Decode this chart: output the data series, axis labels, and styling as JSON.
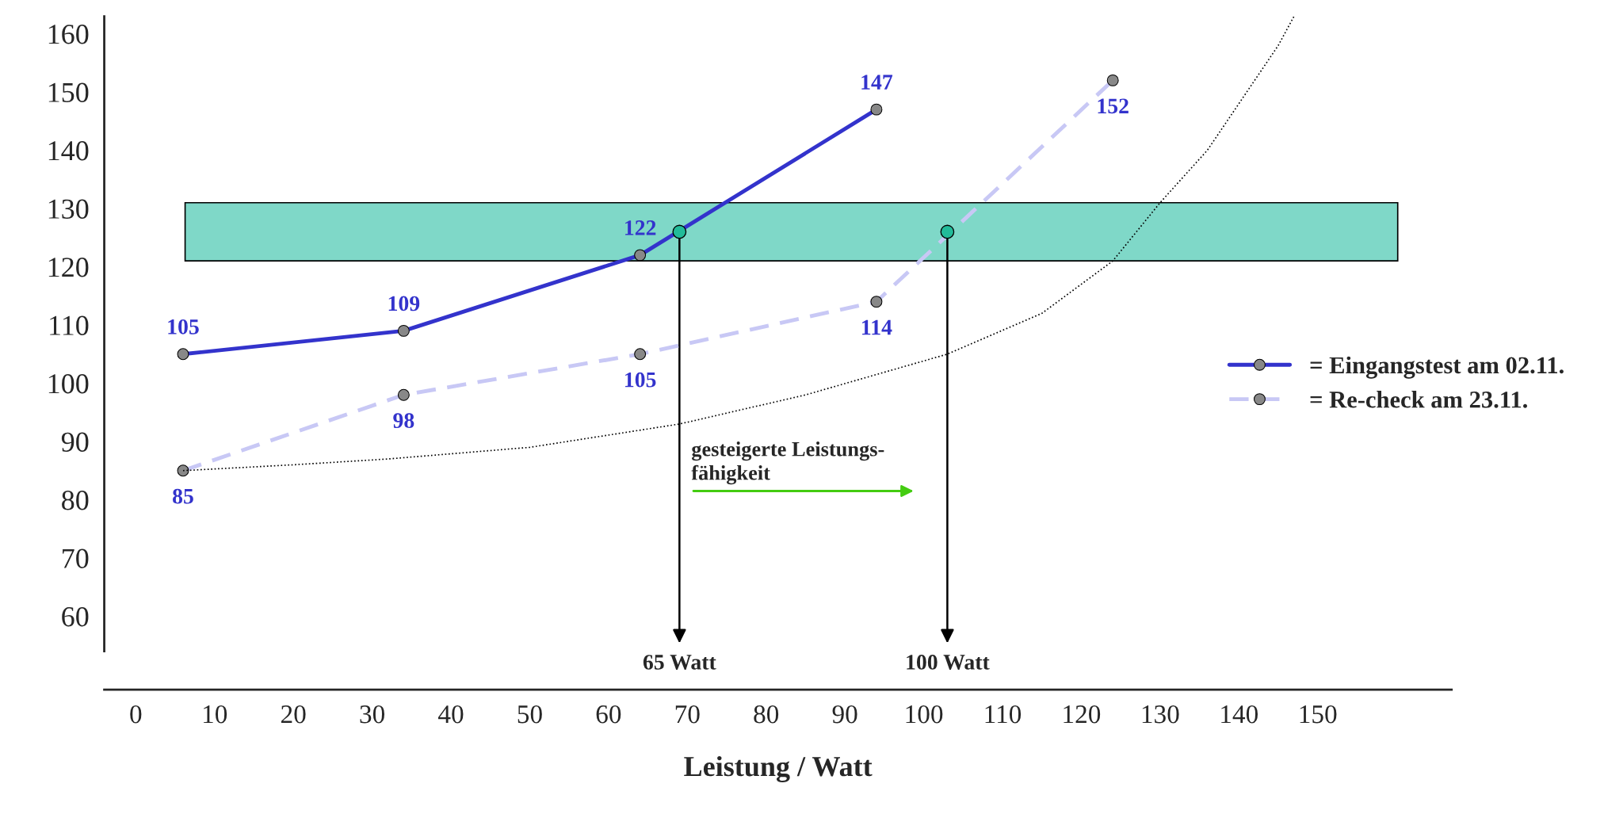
{
  "chart_data": {
    "type": "line",
    "xlabel": "Leistung / Watt",
    "xlim": [
      -4,
      167
    ],
    "ylim": [
      54,
      163
    ],
    "xticks": [
      0,
      10,
      20,
      30,
      40,
      50,
      60,
      70,
      80,
      90,
      100,
      110,
      120,
      130,
      140,
      150
    ],
    "yticks": [
      60,
      70,
      80,
      90,
      100,
      110,
      120,
      130,
      140,
      150,
      160
    ],
    "grid": false,
    "legend": "right",
    "marker": "circle",
    "bands": [
      {
        "axis": "y",
        "from": 121,
        "to": 131,
        "color": "#7fd8c8"
      }
    ],
    "series": [
      {
        "name": "= Eingangstest am 02.11.",
        "color": "#3333cc",
        "line_style": "solid",
        "x": [
          6,
          34,
          64,
          94
        ],
        "values": [
          105,
          109,
          122,
          147
        ],
        "value_labels": [
          "105",
          "109",
          "122",
          "147"
        ]
      },
      {
        "name": "= Re-check am 23.11.",
        "color": "#c8c8f5",
        "line_style": "dashed",
        "x": [
          6,
          34,
          64,
          94,
          124
        ],
        "values": [
          85,
          98,
          105,
          114,
          152
        ],
        "value_labels": [
          "85",
          "98",
          "105",
          "114",
          "152"
        ]
      },
      {
        "type": "line",
        "color": "#000000",
        "line_style": "dotted",
        "marker": "none",
        "x": [
          6,
          20,
          32,
          50,
          69,
          85,
          103,
          115,
          124,
          130,
          136,
          141,
          145,
          147
        ],
        "values": [
          85,
          86,
          87,
          89,
          93,
          98,
          105,
          112,
          121,
          131,
          140,
          150,
          158,
          163
        ]
      },
      {
        "type": "scatter",
        "color": "#22bb99",
        "x": [
          69,
          103
        ],
        "values": [
          126,
          126
        ]
      }
    ],
    "annotations": [
      {
        "text": "65 Watt",
        "x": 69,
        "y": 126
      },
      {
        "text": "100 Watt",
        "x": 103,
        "y": 126
      },
      "gesteigerte Leistungs-\nfähigkeit"
    ]
  }
}
